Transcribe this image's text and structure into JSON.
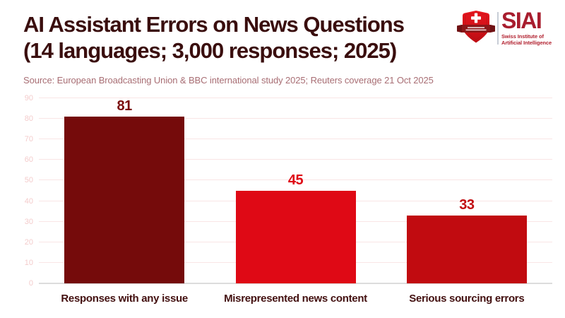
{
  "header": {
    "title_line1": "AI Assistant Errors on News Questions",
    "title_line2": "(14 languages; 3,000 responses; 2025)",
    "source": "Source: European Broadcasting Union & BBC international study 2025; Reuters coverage 21 Oct 2025"
  },
  "logo": {
    "acronym": "SIAI",
    "name_line1": "Swiss Institute of",
    "name_line2": "Artificial Intelligence",
    "icon": "swiss-shield-cross-icon",
    "colors": {
      "shield_top": "#e8161f",
      "shield_bottom": "#bd0d13",
      "banner": "#8c1719",
      "cross": "#ffffff",
      "acronym": "#a81d2e",
      "name": "#b22230",
      "divider": "#c8cdd6"
    }
  },
  "chart_data": {
    "type": "bar",
    "title": "AI Assistant Errors on News Questions (14 languages; 3,000 responses; 2025)",
    "categories": [
      "Responses with any issue",
      "Misrepresented news content",
      "Serious sourcing errors"
    ],
    "values": [
      81,
      45,
      33
    ],
    "bar_colors": [
      "#750b0b",
      "#df0915",
      "#c10b10"
    ],
    "value_label_colors": [
      "#7b0d0d",
      "#df0915",
      "#c10b10"
    ],
    "xlabel": "",
    "ylabel": "",
    "ylim": [
      0,
      90
    ],
    "yticks": [
      0,
      10,
      20,
      30,
      40,
      50,
      60,
      70,
      80,
      90
    ],
    "grid": true,
    "gridline_color": "#f9e5e5",
    "axis_line_color": "#dcdcdc",
    "tick_label_color": "#f4cccc",
    "legend": "none",
    "value_labels_shown": true
  }
}
